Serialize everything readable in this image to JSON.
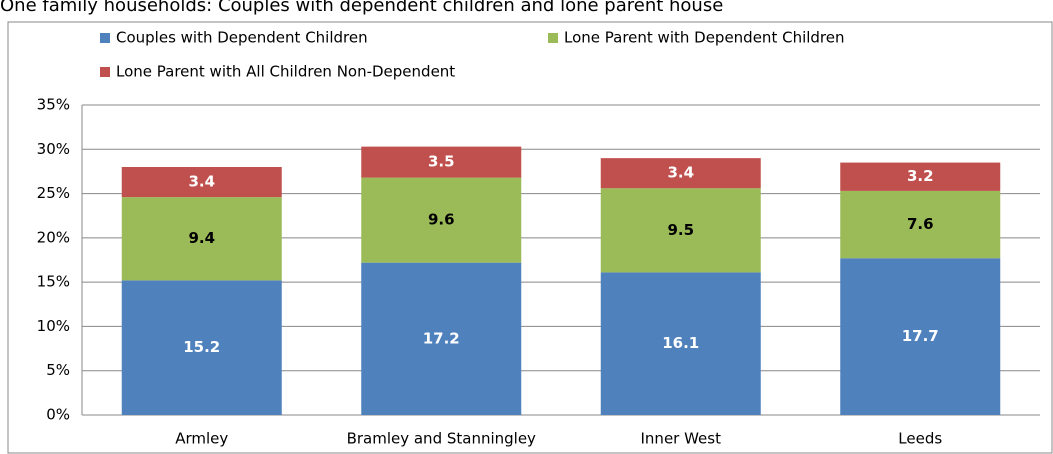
{
  "chart_data": {
    "type": "stacked_bar",
    "title": "One family households: Couples with dependent children and lone parent house",
    "categories": [
      "Armley",
      "Bramley and Stanningley",
      "Inner West",
      "Leeds"
    ],
    "series": [
      {
        "name": "Couples with Dependent Children",
        "color": "#4f81bd",
        "label_color": "#ffffff",
        "values": [
          15.2,
          17.2,
          16.1,
          17.7
        ]
      },
      {
        "name": "Lone Parent with Dependent Children",
        "color": "#9bbb59",
        "label_color": "#000000",
        "values": [
          9.4,
          9.6,
          9.5,
          7.6
        ]
      },
      {
        "name": "Lone Parent with All Children Non-Dependent",
        "color": "#c0504d",
        "label_color": "#ffffff",
        "values": [
          3.4,
          3.5,
          3.4,
          3.2
        ]
      }
    ],
    "ylim": [
      0,
      35
    ],
    "yticks": [
      {
        "value": 0,
        "label": "0%"
      },
      {
        "value": 5,
        "label": "5%"
      },
      {
        "value": 10,
        "label": "10%"
      },
      {
        "value": 15,
        "label": "15%"
      },
      {
        "value": 20,
        "label": "20%"
      },
      {
        "value": 25,
        "label": "25%"
      },
      {
        "value": 30,
        "label": "30%"
      },
      {
        "value": 35,
        "label": "35%"
      }
    ],
    "grid": true
  }
}
